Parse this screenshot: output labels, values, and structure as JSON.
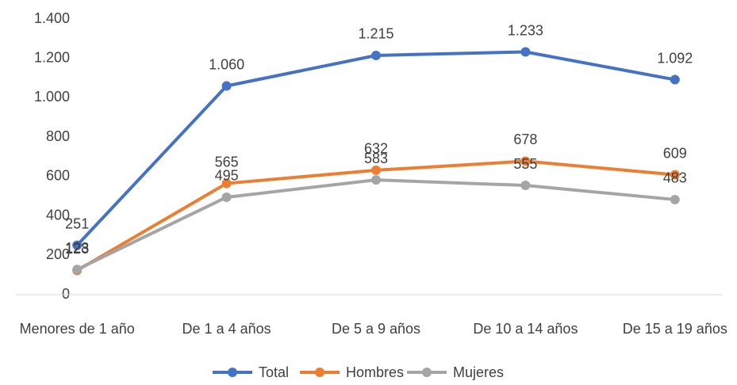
{
  "chart_data": {
    "type": "line",
    "categories": [
      "Menores de 1 año",
      "De 1 a 4 años",
      "De 5 a 9 años",
      "De 10 a 14 años",
      "De 15 a 19 años"
    ],
    "series": [
      {
        "name": "Total",
        "color": "#4472c4",
        "values": [
          251,
          1060,
          1215,
          1233,
          1092
        ],
        "value_labels": [
          "251",
          "1.060",
          "1.215",
          "1.233",
          "1.092"
        ]
      },
      {
        "name": "Hombres",
        "color": "#ed7d31",
        "values": [
          123,
          565,
          632,
          678,
          609
        ]
      },
      {
        "name": "Mujeres",
        "color": "#a5a5a5",
        "values": [
          128,
          495,
          583,
          555,
          483
        ]
      }
    ],
    "ylim": [
      0,
      1400
    ],
    "yticks": [
      0,
      200,
      400,
      600,
      800,
      {
        "value": 1000,
        "label": "1.000"
      },
      {
        "value": 1200,
        "label": "1.200"
      },
      {
        "value": 1400,
        "label": "1.400"
      }
    ],
    "grid": false,
    "legend": "bottom"
  }
}
